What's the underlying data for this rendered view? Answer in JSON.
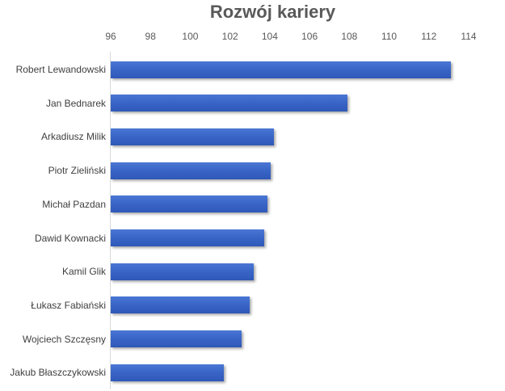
{
  "chart_data": {
    "type": "bar",
    "orientation": "horizontal",
    "title": "Rozwój kariery",
    "xlabel": "",
    "ylabel": "",
    "xlim": [
      96,
      114
    ],
    "x_ticks": [
      "96",
      "98",
      "100",
      "102",
      "104",
      "106",
      "108",
      "110",
      "112",
      "114"
    ],
    "x_axis_position": "top",
    "grid": false,
    "legend": null,
    "bar_color": "#3a66c8",
    "categories": [
      "Robert Lewandowski",
      "Jan Bednarek",
      "Arkadiusz Milik",
      "Piotr Zieliński",
      "Michał Pazdan",
      "Dawid Kownacki",
      "Kamil Glik",
      "Łukasz Fabiański",
      "Wojciech Szczęsny",
      "Jakub Błaszczykowski"
    ],
    "values": [
      113.1,
      107.9,
      104.2,
      104.05,
      103.9,
      103.7,
      103.2,
      103.0,
      102.6,
      101.7
    ]
  }
}
